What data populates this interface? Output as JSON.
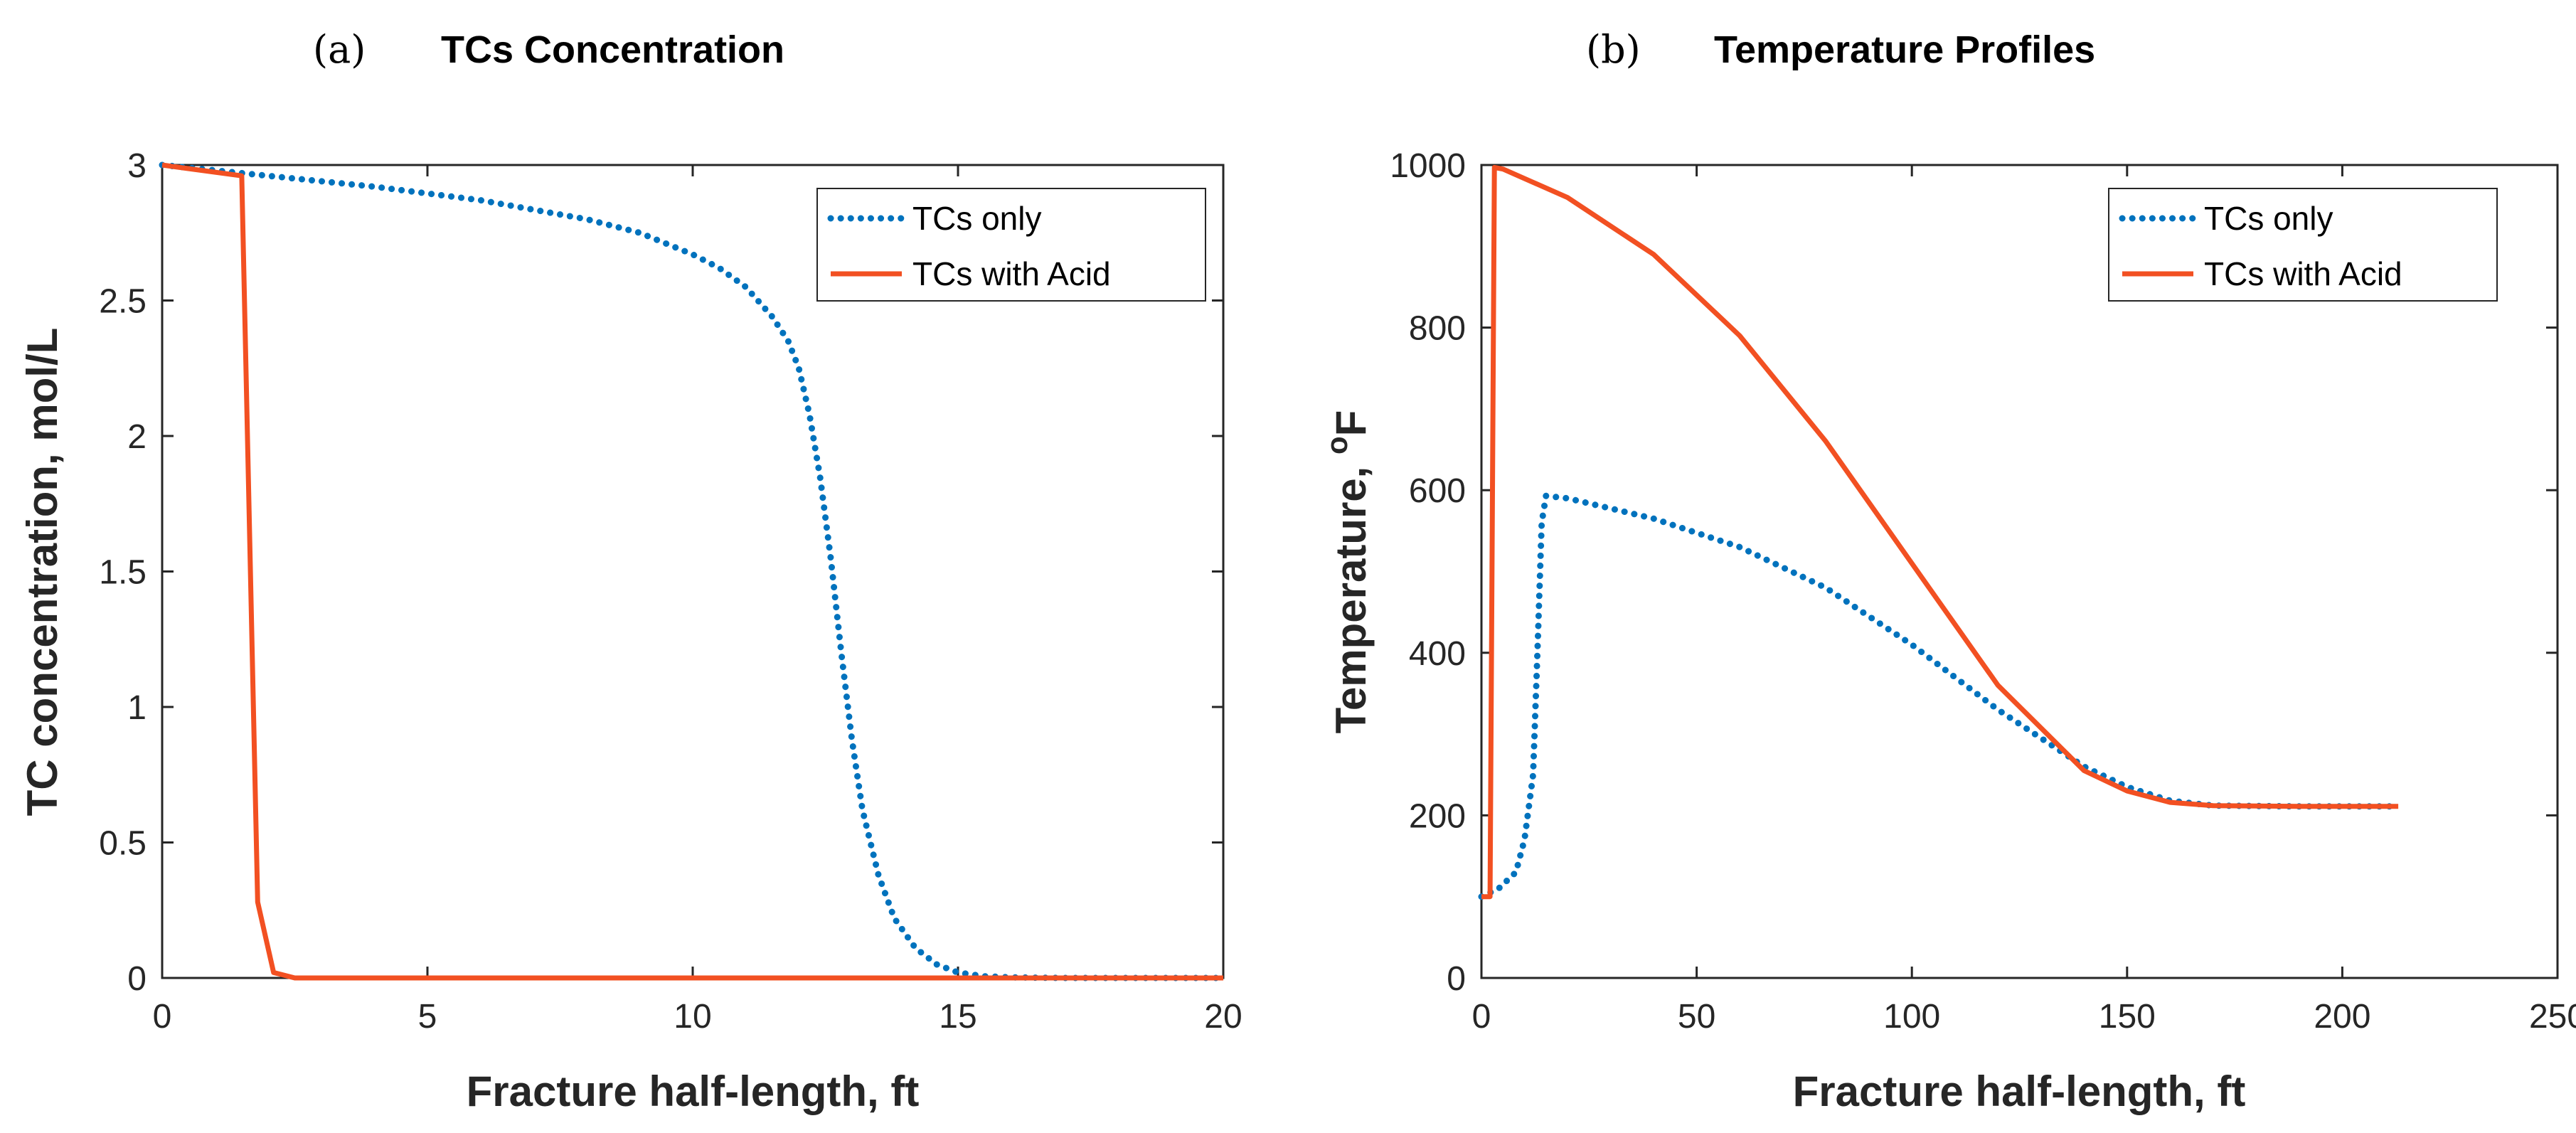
{
  "colors": {
    "tcs_only": "#0072BD",
    "tcs_with_acid": "#F25022",
    "axis": "#262626"
  },
  "chart_data": [
    {
      "type": "line",
      "panel_label": "(a)",
      "title": "TCs Concentration",
      "xlabel": "Fracture half-length, ft",
      "ylabel": "TC concentration, mol/L",
      "xlim": [
        0,
        20
      ],
      "ylim": [
        0,
        3
      ],
      "xticks": [
        0,
        5,
        10,
        15,
        20
      ],
      "xtick_labels": [
        "0",
        "5",
        "10",
        "15",
        "20"
      ],
      "yticks": [
        0,
        0.5,
        1,
        1.5,
        2,
        2.5,
        3
      ],
      "ytick_labels": [
        "0",
        "0.5",
        "1",
        "1.5",
        "2",
        "2.5",
        "3"
      ],
      "legend_position": "top-right",
      "series": [
        {
          "name": "TCs only",
          "style": "dotted",
          "x": [
            0,
            2,
            4,
            6,
            8,
            9,
            10,
            10.5,
            11,
            11.5,
            11.8,
            12,
            12.2,
            12.4,
            12.6,
            12.8,
            13,
            13.2,
            13.5,
            13.8,
            14.2,
            14.6,
            15,
            15.5,
            16,
            17,
            18,
            20
          ],
          "y": [
            3.0,
            2.96,
            2.92,
            2.87,
            2.8,
            2.75,
            2.67,
            2.62,
            2.55,
            2.44,
            2.35,
            2.25,
            2.08,
            1.85,
            1.55,
            1.2,
            0.88,
            0.62,
            0.38,
            0.22,
            0.11,
            0.05,
            0.02,
            0.006,
            0.002,
            0.0,
            0.0,
            0.0
          ]
        },
        {
          "name": "TCs with Acid",
          "style": "solid",
          "x": [
            0,
            1.5,
            1.8,
            2.1,
            2.5,
            5,
            10,
            15,
            20
          ],
          "y": [
            3.0,
            2.96,
            0.28,
            0.02,
            0.0,
            0.0,
            0.0,
            0.0,
            0.0
          ]
        }
      ]
    },
    {
      "type": "line",
      "panel_label": "(b)",
      "title": "Temperature Profiles",
      "xlabel": "Fracture half-length, ft",
      "ylabel": "Temperature, °F",
      "ylabel_main": "Temperature, ",
      "ylabel_sup": "o",
      "ylabel_unit": "F",
      "xlim": [
        0,
        250
      ],
      "ylim": [
        0,
        1000
      ],
      "xticks": [
        0,
        50,
        100,
        150,
        200,
        250
      ],
      "xtick_labels": [
        "0",
        "50",
        "100",
        "150",
        "200",
        "250"
      ],
      "yticks": [
        0,
        200,
        400,
        600,
        800,
        1000
      ],
      "ytick_labels": [
        "0",
        "200",
        "400",
        "600",
        "800",
        "1000"
      ],
      "legend_position": "top-right",
      "series": [
        {
          "name": "TCs only",
          "style": "dotted",
          "x": [
            0,
            4,
            8,
            10,
            12,
            13,
            14,
            15,
            20,
            40,
            60,
            80,
            100,
            120,
            140,
            150,
            160,
            170,
            190,
            213
          ],
          "y": [
            100,
            110,
            130,
            170,
            250,
            400,
            560,
            593,
            590,
            565,
            530,
            480,
            410,
            330,
            260,
            235,
            218,
            212,
            211,
            211
          ]
        },
        {
          "name": "TCs with Acid",
          "style": "solid",
          "x": [
            0,
            2,
            3,
            5,
            20,
            40,
            60,
            80,
            100,
            120,
            140,
            150,
            160,
            170,
            190,
            213
          ],
          "y": [
            100,
            100,
            997,
            995,
            960,
            890,
            790,
            660,
            510,
            360,
            255,
            230,
            216,
            212,
            211,
            211
          ]
        }
      ]
    }
  ]
}
